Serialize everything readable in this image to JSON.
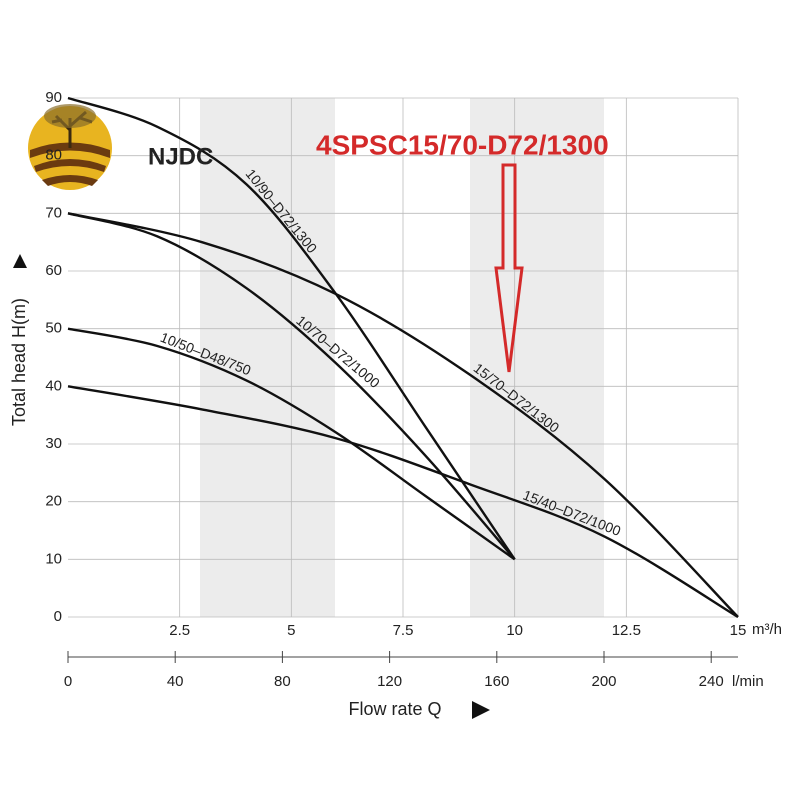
{
  "chart_data": {
    "type": "line",
    "logo_text": "NJDC",
    "annotation": "4SPSC15/70-D72/1300",
    "ylabel": "Total head H(m)",
    "xlabel": "Flow rate Q",
    "x_unit": "m³/h",
    "x2_unit": "l/min",
    "xlim": [
      0,
      15
    ],
    "xticks": [
      2.5,
      5,
      7.5,
      10,
      12.5,
      15
    ],
    "x2lim": [
      0,
      250
    ],
    "x2ticks": [
      0,
      40,
      80,
      120,
      160,
      200,
      240
    ],
    "ylim": [
      0,
      90
    ],
    "yticks": [
      0,
      10,
      20,
      30,
      40,
      50,
      60,
      70,
      80,
      90
    ],
    "grid": true,
    "series": [
      {
        "name": "10/90–D72/1300",
        "color": "#111111",
        "x": [
          0,
          2,
          4,
          6,
          8,
          10
        ],
        "values": [
          90,
          85,
          75,
          56,
          33,
          10
        ]
      },
      {
        "name": "10/70–D72/1000",
        "color": "#111111",
        "x": [
          0,
          2,
          4,
          6,
          8,
          10
        ],
        "values": [
          70,
          66,
          57,
          44,
          28,
          10
        ]
      },
      {
        "name": "15/70–D72/1300",
        "color": "#111111",
        "x": [
          0,
          3,
          6,
          9,
          12,
          15
        ],
        "values": [
          70,
          65,
          56,
          42,
          24,
          0
        ]
      },
      {
        "name": "10/50–D48/750",
        "color": "#111111",
        "x": [
          0,
          2,
          4,
          6,
          8,
          10
        ],
        "values": [
          50,
          47,
          41,
          32,
          21,
          10
        ]
      },
      {
        "name": "15/40–D72/1000",
        "color": "#111111",
        "x": [
          0,
          3,
          6,
          9,
          12,
          15
        ],
        "values": [
          40,
          36,
          31,
          23,
          14,
          0
        ]
      }
    ]
  }
}
